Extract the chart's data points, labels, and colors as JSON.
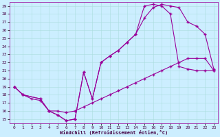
{
  "xlabel": "Windchill (Refroidissement éolien,°C)",
  "bg_color": "#cceeff",
  "line_color": "#990099",
  "ylim": [
    14.5,
    29.5
  ],
  "xlim": [
    -0.5,
    23.5
  ],
  "yticks": [
    15,
    16,
    17,
    18,
    19,
    20,
    21,
    22,
    23,
    24,
    25,
    26,
    27,
    28,
    29
  ],
  "xticks": [
    0,
    1,
    2,
    3,
    4,
    5,
    6,
    7,
    8,
    9,
    10,
    11,
    12,
    13,
    14,
    15,
    16,
    17,
    18,
    19,
    20,
    21,
    22,
    23
  ],
  "line1_x": [
    0,
    1,
    3,
    4,
    5,
    6,
    7,
    8,
    9,
    10,
    11,
    12,
    13,
    14,
    15,
    16,
    17,
    18,
    19,
    20,
    21,
    22,
    23
  ],
  "line1_y": [
    19.0,
    18.0,
    17.5,
    16.0,
    15.5,
    14.8,
    15.0,
    20.8,
    17.5,
    22.0,
    22.8,
    23.5,
    24.5,
    25.5,
    27.5,
    28.8,
    29.2,
    29.0,
    28.8,
    27.0,
    26.5,
    25.5,
    21.2
  ],
  "line2_x": [
    0,
    1,
    3,
    4,
    5,
    6,
    7,
    8,
    9,
    10,
    11,
    12,
    13,
    14,
    15,
    16,
    17,
    18,
    19,
    20,
    21,
    22,
    23
  ],
  "line2_y": [
    19.0,
    18.0,
    17.5,
    16.0,
    15.5,
    14.8,
    15.0,
    20.8,
    17.5,
    22.0,
    22.8,
    23.5,
    24.5,
    25.5,
    29.0,
    29.2,
    29.0,
    28.0,
    21.5,
    21.2,
    21.0,
    21.0,
    21.0
  ],
  "line3_x": [
    0,
    1,
    2,
    3,
    4,
    5,
    6,
    7,
    8,
    9,
    10,
    11,
    12,
    13,
    14,
    15,
    16,
    17,
    18,
    19,
    20,
    21,
    22,
    23
  ],
  "line3_y": [
    19.0,
    18.0,
    17.5,
    17.3,
    16.0,
    16.0,
    15.8,
    16.0,
    16.5,
    17.0,
    17.5,
    18.0,
    18.5,
    19.0,
    19.5,
    20.0,
    20.5,
    21.0,
    21.5,
    22.0,
    22.5,
    22.5,
    22.5,
    21.0
  ]
}
